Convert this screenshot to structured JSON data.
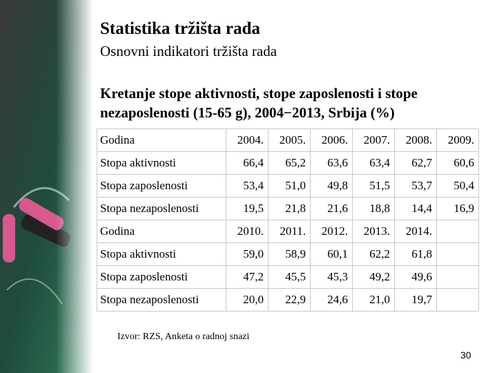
{
  "header": {
    "title": "Statistika tržišta rada",
    "subtitle": "Osnovni indikatori tržišta rada"
  },
  "heading": "Kretanje stope aktivnosti, stope zaposlenosti i stope nezaposlenosti (15-65 g), 2004−2013, Srbija (%)",
  "table": {
    "rows": [
      [
        "Godina",
        "2004.",
        "2005.",
        "2006.",
        "2007.",
        "2008.",
        "2009."
      ],
      [
        "Stopa aktivnosti",
        "66,4",
        "65,2",
        "63,6",
        "63,4",
        "62,7",
        "60,6"
      ],
      [
        "Stopa zaposlenosti",
        "53,4",
        "51,0",
        "49,8",
        "51,5",
        "53,7",
        "50,4"
      ],
      [
        "Stopa nezaposlenosti",
        "19,5",
        "21,8",
        "21,6",
        "18,8",
        "14,4",
        "16,9"
      ],
      [
        "Godina",
        "2010.",
        "2011.",
        "2012.",
        "2013.",
        "2014."
      ],
      [
        "Stopa aktivnosti",
        "59,0",
        "58,9",
        "60,1",
        "62,2",
        "61,8"
      ],
      [
        "Stopa zaposlenosti",
        "47,2",
        "45,5",
        "45,3",
        "49,2",
        "49,6"
      ],
      [
        "Stopa nezaposlenosti",
        "20,0",
        "22,9",
        "24,6",
        "21,0",
        "19,7"
      ]
    ]
  },
  "source": "Izvor: RZS, Anketa o radnoj snazi",
  "page_number": "30"
}
